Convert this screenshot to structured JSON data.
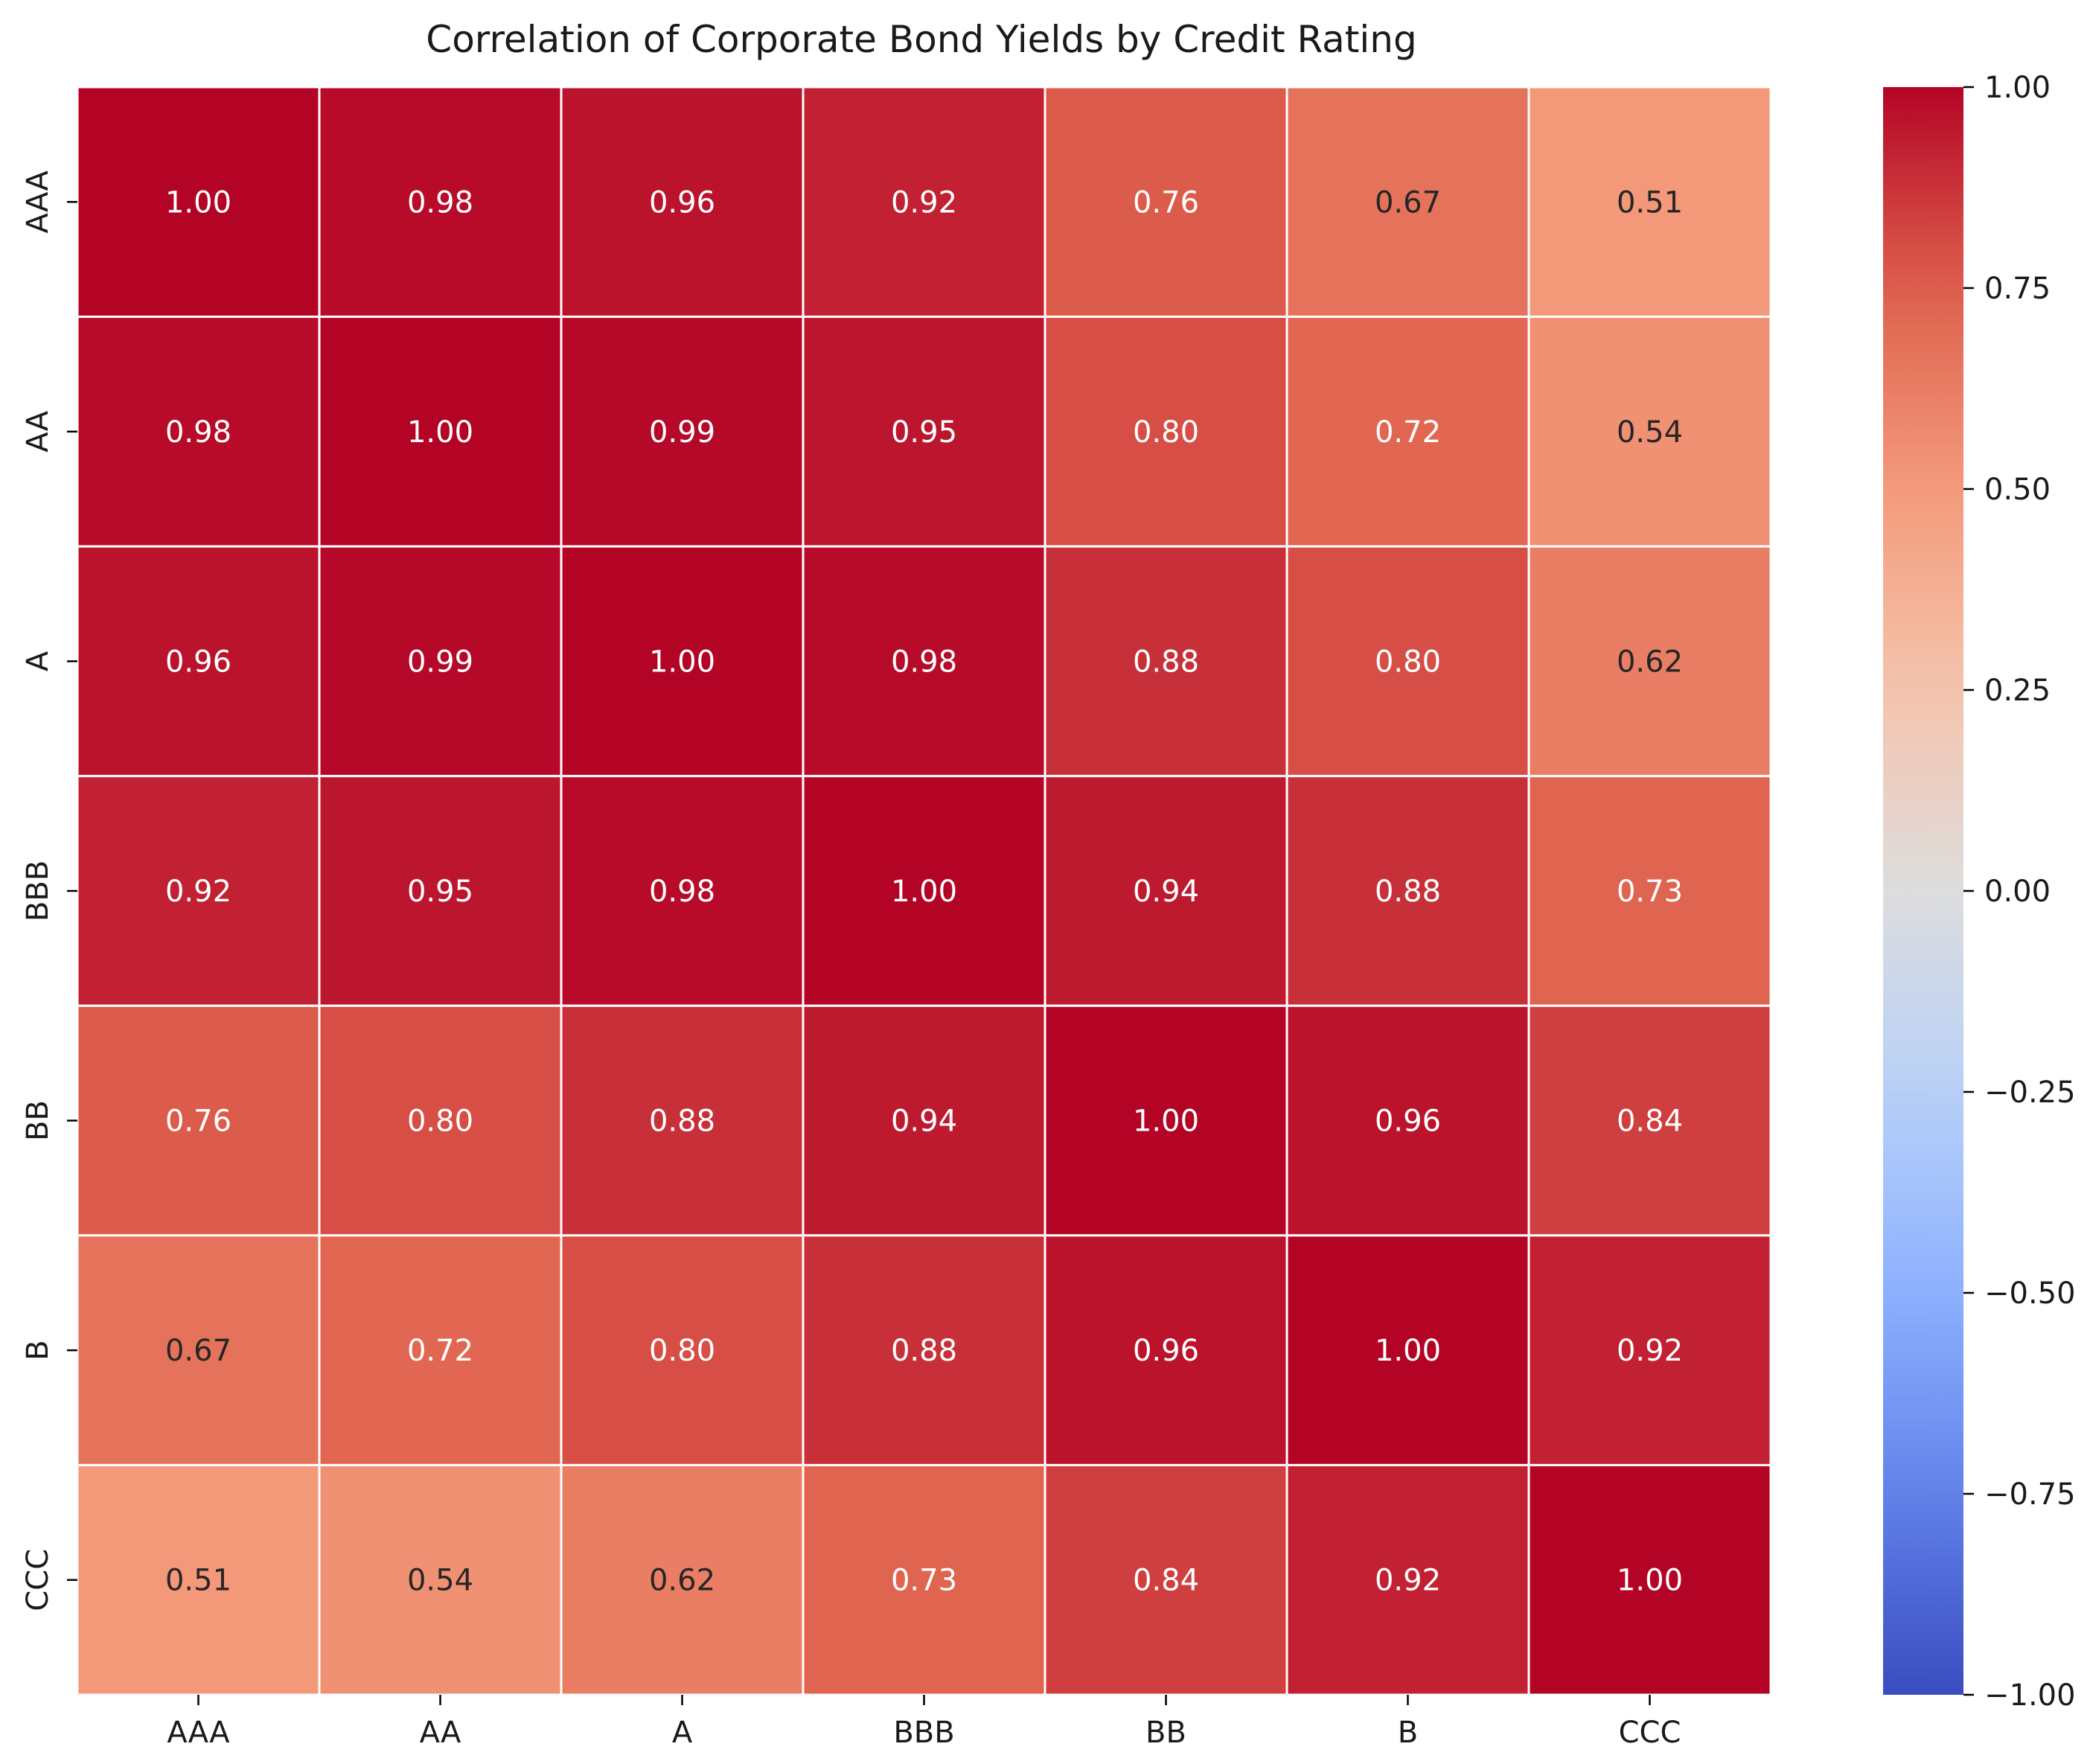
{
  "chart_data": {
    "type": "heatmap",
    "title": "Correlation of Corporate Bond Yields by Credit Rating",
    "xlabel": "",
    "ylabel": "",
    "x_categories": [
      "AAA",
      "AA",
      "A",
      "BBB",
      "BB",
      "B",
      "CCC"
    ],
    "y_categories": [
      "AAA",
      "AA",
      "A",
      "BBB",
      "BB",
      "B",
      "CCC"
    ],
    "values": [
      [
        1.0,
        0.98,
        0.96,
        0.92,
        0.76,
        0.67,
        0.51
      ],
      [
        0.98,
        1.0,
        0.99,
        0.95,
        0.8,
        0.72,
        0.54
      ],
      [
        0.96,
        0.99,
        1.0,
        0.98,
        0.88,
        0.8,
        0.62
      ],
      [
        0.92,
        0.95,
        0.98,
        1.0,
        0.94,
        0.88,
        0.73
      ],
      [
        0.76,
        0.8,
        0.88,
        0.94,
        1.0,
        0.96,
        0.84
      ],
      [
        0.67,
        0.72,
        0.8,
        0.88,
        0.96,
        1.0,
        0.92
      ],
      [
        0.51,
        0.54,
        0.62,
        0.73,
        0.84,
        0.92,
        1.0
      ]
    ],
    "value_format": "0.00",
    "colormap": "coolwarm",
    "vmin": -1.0,
    "vmax": 1.0,
    "colorbar_ticks": [
      "1.00",
      "0.75",
      "0.50",
      "0.25",
      "0.00",
      "−0.25",
      "−0.50",
      "−0.75",
      "−1.00"
    ],
    "colorbar_tick_values": [
      1.0,
      0.75,
      0.5,
      0.25,
      0.0,
      -0.25,
      -0.5,
      -0.75,
      -1.0
    ],
    "grid_line_color": "#ffffff",
    "annotation_dark_text_color": "#262626",
    "annotation_light_text_color": "#ffffff"
  }
}
